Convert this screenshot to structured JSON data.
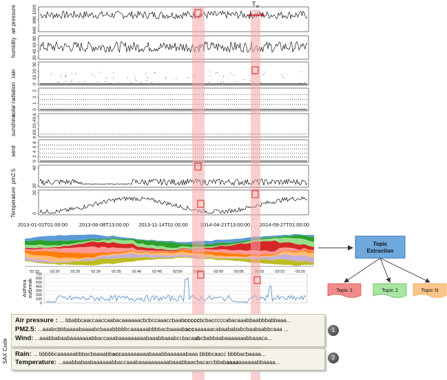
{
  "panels": [
    {
      "label": "air pressure",
      "ticks": [
        "1020",
        "980",
        "940"
      ],
      "range": [
        930,
        1030
      ],
      "base": 1000,
      "amp": 18,
      "style": "line"
    },
    {
      "label": "humidity",
      "ticks": [
        "80",
        "60",
        "40",
        "20"
      ],
      "range": [
        10,
        95
      ],
      "base": 55,
      "amp": 22,
      "style": "line"
    },
    {
      "label": "rain",
      "ticks": [
        "30",
        "20",
        "10",
        "0"
      ],
      "range": [
        0,
        35
      ],
      "base": 0.5,
      "amp": 3,
      "style": "sparse"
    },
    {
      "label": "solar radiation",
      "ticks": [
        "3",
        "2",
        "1",
        "0"
      ],
      "range": [
        0,
        3.5
      ],
      "base": 1.5,
      "amp": 1,
      "style": "levels"
    },
    {
      "label": "sunshine",
      "ticks": [
        "0.6",
        "0.4",
        "0.2",
        "0.0"
      ],
      "range": [
        0,
        0.7
      ],
      "base": 0.1,
      "amp": 0.1,
      "style": "flat"
    },
    {
      "label": "wind",
      "ticks": [
        "8",
        "6",
        "4",
        "2",
        "0"
      ],
      "range": [
        0,
        9
      ],
      "base": 1.5,
      "amp": 2,
      "style": "levels"
    },
    {
      "label": "pm2.5",
      "ticks": [
        "40",
        "20"
      ],
      "range": [
        0,
        60
      ],
      "base": 12,
      "amp": 10,
      "style": "line"
    },
    {
      "label": "Temperature",
      "ticks": [
        "20",
        "0"
      ],
      "range": [
        -5,
        35
      ],
      "base": 10,
      "amp": 12,
      "style": "seasonal"
    }
  ],
  "time_axis": [
    "2013-01-01T01:00:00",
    "2013-06-08T13:00:00",
    "2013-11-14T01:00:00",
    "2014-04-21T13:00:00",
    "2014-09-27T01:00:00"
  ],
  "tw_label": "T",
  "tw_sub": "w",
  "stream": {
    "times": [
      "02:15",
      "02:20",
      "02:25",
      "02:30",
      "02:35",
      "02:40",
      "02:45",
      "02:50",
      "02:55",
      "03:00",
      "03:05",
      "03:10",
      "03:15",
      "03:20"
    ],
    "colors": [
      "#5b9bd5",
      "#2ca02c",
      "#98df8a",
      "#d62728",
      "#ff9896",
      "#ff7f0e",
      "#ffbb78",
      "#c5b0d5",
      "#bcbd22"
    ]
  },
  "asthma": {
    "label_line1": "Asthma",
    "label_line2": "outbreak",
    "ticks": [
      "700",
      "600",
      "500",
      "400",
      "300",
      "200",
      "100",
      "0"
    ],
    "max": 700
  },
  "topics": {
    "extraction_line1": "Topic",
    "extraction_line2": "Extraction",
    "items": [
      {
        "label": "Topic 1",
        "color": "#f28b8b",
        "edge": "#d9534f"
      },
      {
        "label": "Topic 2",
        "color": "#a8e6a1",
        "edge": "#5cb85c"
      },
      {
        "label": "Topic N",
        "color": "#fbc58a",
        "edge": "#f0ad4e"
      }
    ],
    "extraction_color": "#6fa8dc"
  },
  "sax": {
    "axis_label": "SAX Code",
    "group1": [
      {
        "name": "Air pressure :",
        "pre": " ... bbabbcaaccaaccaabacaaaaaacbcbccaaaccbaab",
        "hl": "ccccc",
        "post": "bcbacccccabacaaabbaabbbabbaaa..."
      },
      {
        "name": "PM2.5:",
        "pre": " ...aaabcbbbaaaabaaaabcbaaabbbbbcaaaaaabbbbacbaaaab",
        "hl": "acc",
        "post": "aaaaaacabaabababcbaabaabbcaaa ..."
      },
      {
        "name": "Wind:",
        "pre": " ...aaabbabaabaaaaaaabbaccaaabaaaaaaaaabaaabbaaabccbaca",
        "hl": "ab",
        "post": "cbabbaabaaaaaaabbaaaca..."
      }
    ],
    "group1_badge": "1",
    "group2": [
      {
        "name": "Rain:",
        "pre": " ... bbbbbcaaaaaabbbacbaaaabb",
        "hl": "acc",
        "post": "aaaaaaaaabaaabbaaaaaabaaa bbbbcaacc bbbbacbaaaa..."
      },
      {
        "name": "Temperature:",
        "pre": " ...aaabbabaabaaaaaabbaccaaabaaaaaaaaaabaaabbaacbacaccbbab",
        "hl": "aaaa",
        "post": "aaaaaabbaaaa..."
      }
    ],
    "group2_badge": "2"
  }
}
